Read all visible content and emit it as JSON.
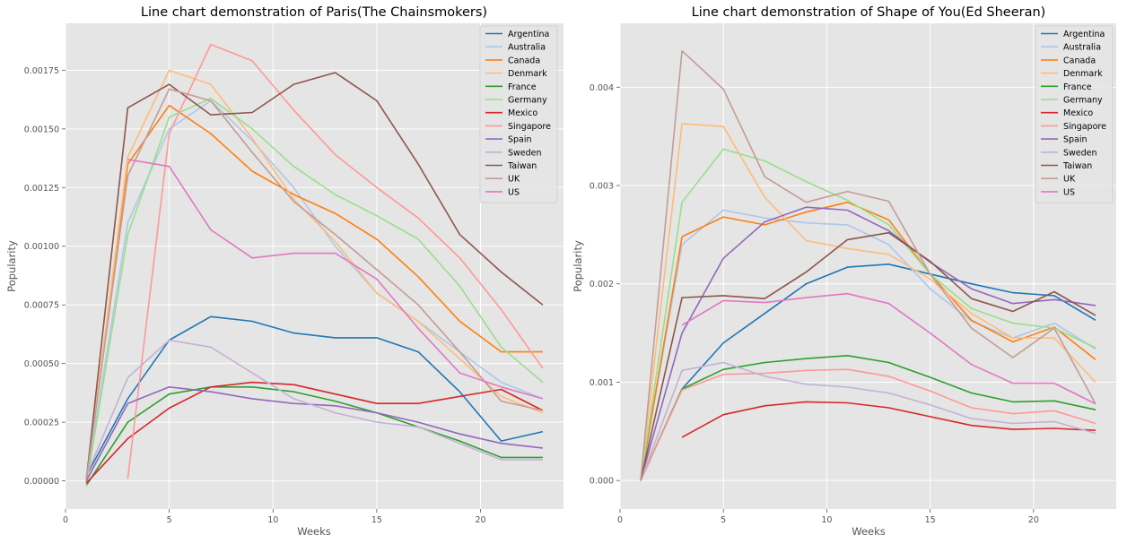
{
  "chart_data": [
    {
      "type": "line",
      "title": "Line chart demonstration of Paris(The Chainsmokers)",
      "xlabel": "Weeks",
      "ylabel": "Popularity",
      "xlim": [
        0,
        24
      ],
      "ylim": [
        -0.00012,
        0.00195
      ],
      "x_ticks": [
        0,
        5,
        10,
        15,
        20
      ],
      "x_tick_labels": [
        "0",
        "5",
        "10",
        "15",
        "20"
      ],
      "y_ticks": [
        0,
        0.00025,
        0.0005,
        0.00075,
        0.001,
        0.00125,
        0.0015,
        0.00175
      ],
      "y_tick_labels": [
        "0.00000",
        "0.00025",
        "0.00050",
        "0.00075",
        "0.00100",
        "0.00125",
        "0.00150",
        "0.00175"
      ],
      "grid": true,
      "legend_position": "top-right",
      "series": [
        {
          "name": "Argentina",
          "color": "#1f77b4",
          "x": [
            1,
            3,
            5,
            7,
            9,
            11,
            13,
            15,
            17,
            19,
            21,
            23
          ],
          "values": [
            2e-05,
            0.00035,
            0.0006,
            0.0007,
            0.00068,
            0.00063,
            0.00061,
            0.00061,
            0.00055,
            0.00038,
            0.00017,
            0.00021
          ]
        },
        {
          "name": "Australia",
          "color": "#aec7e8",
          "x": [
            1,
            3,
            5,
            7,
            9,
            11,
            13,
            15,
            17,
            19,
            21,
            23
          ],
          "values": [
            0.0,
            0.0011,
            0.0015,
            0.00162,
            0.00145,
            0.00125,
            0.001,
            0.0008,
            0.00068,
            0.00055,
            0.00042,
            0.00035
          ]
        },
        {
          "name": "Canada",
          "color": "#ff7f0e",
          "x": [
            1,
            3,
            5,
            7,
            9,
            11,
            13,
            15,
            17,
            19,
            21,
            23
          ],
          "values": [
            0.0,
            0.00135,
            0.0016,
            0.00148,
            0.00132,
            0.00122,
            0.00114,
            0.00103,
            0.00087,
            0.00068,
            0.00055,
            0.00055
          ]
        },
        {
          "name": "Denmark",
          "color": "#ffbb78",
          "x": [
            1,
            3,
            5,
            7,
            9,
            11,
            13,
            15,
            17,
            19,
            21,
            23
          ],
          "values": [
            0.0,
            0.00138,
            0.00175,
            0.00169,
            0.00146,
            0.0012,
            0.00102,
            0.0008,
            0.00068,
            0.00052,
            0.00036,
            0.00029
          ]
        },
        {
          "name": "France",
          "color": "#2ca02c",
          "x": [
            1,
            3,
            5,
            7,
            9,
            11,
            13,
            15,
            17,
            19,
            21,
            23
          ],
          "values": [
            -2e-05,
            0.00025,
            0.00037,
            0.0004,
            0.0004,
            0.00038,
            0.00034,
            0.00029,
            0.00023,
            0.00017,
            0.0001,
            0.0001
          ]
        },
        {
          "name": "Germany",
          "color": "#98df8a",
          "x": [
            1,
            3,
            5,
            7,
            9,
            11,
            13,
            15,
            17,
            19,
            21,
            23
          ],
          "values": [
            -2e-05,
            0.00105,
            0.00155,
            0.00163,
            0.0015,
            0.00134,
            0.00122,
            0.00113,
            0.00103,
            0.00083,
            0.00057,
            0.00042
          ]
        },
        {
          "name": "Mexico",
          "color": "#d62728",
          "x": [
            1,
            3,
            5,
            7,
            9,
            11,
            13,
            15,
            17,
            19,
            21,
            23
          ],
          "values": [
            -1e-05,
            0.00018,
            0.00031,
            0.0004,
            0.00042,
            0.00041,
            0.00037,
            0.00033,
            0.00033,
            0.00036,
            0.00039,
            0.0003
          ]
        },
        {
          "name": "Singapore",
          "color": "#ff9896",
          "x": [
            3,
            5,
            7,
            9,
            11,
            13,
            15,
            17,
            19,
            21,
            23
          ],
          "values": [
            1e-05,
            0.00148,
            0.00186,
            0.00179,
            0.00158,
            0.00139,
            0.00125,
            0.00112,
            0.00095,
            0.00073,
            0.00048
          ]
        },
        {
          "name": "Spain",
          "color": "#9467bd",
          "x": [
            1,
            3,
            5,
            7,
            9,
            11,
            13,
            15,
            17,
            19,
            21,
            23
          ],
          "values": [
            0.0,
            0.00033,
            0.0004,
            0.00038,
            0.00035,
            0.00033,
            0.00032,
            0.00029,
            0.00025,
            0.0002,
            0.00016,
            0.00014
          ]
        },
        {
          "name": "Sweden",
          "color": "#c5b0d5",
          "x": [
            1,
            3,
            5,
            7,
            9,
            11,
            13,
            15,
            17,
            19,
            21,
            23
          ],
          "values": [
            2e-05,
            0.00044,
            0.0006,
            0.00057,
            0.00046,
            0.00035,
            0.00029,
            0.00025,
            0.00023,
            0.00016,
            9e-05,
            9e-05
          ]
        },
        {
          "name": "Taiwan",
          "color": "#8c564b",
          "x": [
            1,
            3,
            5,
            7,
            9,
            11,
            13,
            15,
            17,
            19,
            21,
            23
          ],
          "values": [
            0.0,
            0.00159,
            0.00169,
            0.00156,
            0.00157,
            0.00169,
            0.00174,
            0.00162,
            0.00135,
            0.00105,
            0.00089,
            0.00075
          ]
        },
        {
          "name": "UK",
          "color": "#c49c94",
          "x": [
            1,
            3,
            5,
            7,
            9,
            11,
            13,
            15,
            17,
            19,
            21,
            23
          ],
          "values": [
            0.0,
            0.0013,
            0.00167,
            0.00162,
            0.0014,
            0.00119,
            0.00105,
            0.0009,
            0.00075,
            0.00055,
            0.00034,
            0.0003
          ]
        },
        {
          "name": "US",
          "color": "#e377c2",
          "x": [
            3,
            5,
            7,
            9,
            11,
            13,
            15,
            17,
            19,
            21,
            23
          ],
          "values": [
            0.00137,
            0.00134,
            0.00107,
            0.00095,
            0.00097,
            0.00097,
            0.00086,
            0.00065,
            0.00046,
            0.0004,
            0.00035
          ]
        }
      ]
    },
    {
      "type": "line",
      "title": "Line chart demonstration of Shape of You(Ed Sheeran)",
      "xlabel": "Weeks",
      "ylabel": "Popularity",
      "xlim": [
        0,
        24
      ],
      "ylim": [
        -0.00029,
        0.00465
      ],
      "x_ticks": [
        0,
        5,
        10,
        15,
        20
      ],
      "x_tick_labels": [
        "0",
        "5",
        "10",
        "15",
        "20"
      ],
      "y_ticks": [
        0,
        0.001,
        0.002,
        0.003,
        0.004
      ],
      "y_tick_labels": [
        "0.000",
        "0.001",
        "0.002",
        "0.003",
        "0.004"
      ],
      "grid": true,
      "legend_position": "top-right",
      "series": [
        {
          "name": "Argentina",
          "color": "#1f77b4",
          "x": [
            1,
            3,
            5,
            7,
            9,
            11,
            13,
            15,
            17,
            19,
            21,
            23
          ],
          "values": [
            0.0,
            0.00093,
            0.0014,
            0.0017,
            0.002,
            0.00217,
            0.0022,
            0.0021,
            0.002,
            0.00191,
            0.00188,
            0.00163
          ]
        },
        {
          "name": "Australia",
          "color": "#aec7e8",
          "x": [
            1,
            3,
            5,
            7,
            9,
            11,
            13,
            15,
            17,
            19,
            21,
            23
          ],
          "values": [
            0.0,
            0.0024,
            0.00275,
            0.00267,
            0.00262,
            0.0026,
            0.0024,
            0.00195,
            0.00162,
            0.00145,
            0.0016,
            0.00134
          ]
        },
        {
          "name": "Canada",
          "color": "#ff7f0e",
          "x": [
            1,
            3,
            5,
            7,
            9,
            11,
            13,
            15,
            17,
            19,
            21,
            23
          ],
          "values": [
            0.0,
            0.00248,
            0.00268,
            0.0026,
            0.00273,
            0.00283,
            0.00265,
            0.0021,
            0.00163,
            0.00141,
            0.00156,
            0.00123
          ]
        },
        {
          "name": "Denmark",
          "color": "#ffbb78",
          "x": [
            1,
            3,
            5,
            7,
            9,
            11,
            13,
            15,
            17,
            19,
            21,
            23
          ],
          "values": [
            0.0,
            0.00363,
            0.0036,
            0.00288,
            0.00244,
            0.00236,
            0.0023,
            0.00205,
            0.0017,
            0.00145,
            0.00145,
            0.001
          ]
        },
        {
          "name": "France",
          "color": "#2ca02c",
          "x": [
            1,
            3,
            5,
            7,
            9,
            11,
            13,
            15,
            17,
            19,
            21,
            23
          ],
          "values": [
            0.0,
            0.00093,
            0.00113,
            0.0012,
            0.00124,
            0.00127,
            0.0012,
            0.00105,
            0.00089,
            0.0008,
            0.00081,
            0.00072
          ]
        },
        {
          "name": "Germany",
          "color": "#98df8a",
          "x": [
            1,
            3,
            5,
            7,
            9,
            11,
            13,
            15,
            17,
            19,
            21,
            23
          ],
          "values": [
            0.0,
            0.00283,
            0.00337,
            0.00325,
            0.00304,
            0.00285,
            0.0026,
            0.0021,
            0.00175,
            0.0016,
            0.00155,
            0.00135
          ]
        },
        {
          "name": "Mexico",
          "color": "#d62728",
          "x": [
            3,
            5,
            7,
            9,
            11,
            13,
            15,
            17,
            19,
            21,
            23
          ],
          "values": [
            0.00044,
            0.00067,
            0.00076,
            0.0008,
            0.00079,
            0.00074,
            0.00065,
            0.00056,
            0.00052,
            0.00053,
            0.00051
          ]
        },
        {
          "name": "Singapore",
          "color": "#ff9896",
          "x": [
            1,
            3,
            5,
            7,
            9,
            11,
            13,
            15,
            17,
            19,
            21,
            23
          ],
          "values": [
            0.0,
            0.00092,
            0.00108,
            0.00109,
            0.00112,
            0.00113,
            0.00106,
            0.00091,
            0.00074,
            0.00068,
            0.00071,
            0.00058
          ]
        },
        {
          "name": "Spain",
          "color": "#9467bd",
          "x": [
            1,
            3,
            5,
            7,
            9,
            11,
            13,
            15,
            17,
            19,
            21,
            23
          ],
          "values": [
            0.0,
            0.0015,
            0.00226,
            0.00263,
            0.00278,
            0.00275,
            0.00254,
            0.00222,
            0.00195,
            0.0018,
            0.00184,
            0.00178
          ]
        },
        {
          "name": "Sweden",
          "color": "#c5b0d5",
          "x": [
            1,
            3,
            5,
            7,
            9,
            11,
            13,
            15,
            17,
            19,
            21,
            23
          ],
          "values": [
            0.0,
            0.00112,
            0.0012,
            0.00106,
            0.00098,
            0.00095,
            0.00089,
            0.00077,
            0.00063,
            0.00058,
            0.0006,
            0.00048
          ]
        },
        {
          "name": "Taiwan",
          "color": "#8c564b",
          "x": [
            1,
            3,
            5,
            7,
            9,
            11,
            13,
            15,
            17,
            19,
            21,
            23
          ],
          "values": [
            0.0,
            0.00186,
            0.00188,
            0.00185,
            0.00212,
            0.00245,
            0.00252,
            0.00223,
            0.00185,
            0.00172,
            0.00192,
            0.00168
          ]
        },
        {
          "name": "UK",
          "color": "#c49c94",
          "x": [
            1,
            3,
            5,
            7,
            9,
            11,
            13,
            15,
            17,
            19,
            21,
            23
          ],
          "values": [
            0.0,
            0.00437,
            0.00398,
            0.00309,
            0.00283,
            0.00294,
            0.00284,
            0.0021,
            0.00155,
            0.00125,
            0.00155,
            0.00078
          ]
        },
        {
          "name": "US",
          "color": "#e377c2",
          "x": [
            3,
            5,
            7,
            9,
            11,
            13,
            15,
            17,
            19,
            21,
            23
          ],
          "values": [
            0.00158,
            0.00183,
            0.00181,
            0.00186,
            0.0019,
            0.0018,
            0.0015,
            0.00118,
            0.00099,
            0.00099,
            0.00078
          ]
        }
      ]
    }
  ]
}
